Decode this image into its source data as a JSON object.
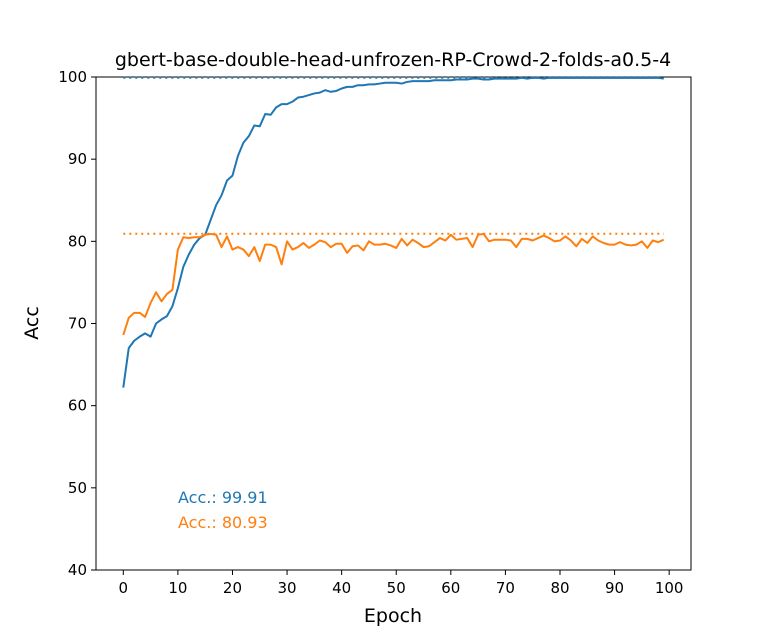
{
  "chart_data": {
    "type": "line",
    "title": "gbert-base-double-head-unfrozen-RP-Crowd-2-folds-a0.5-4",
    "xlabel": "Epoch",
    "ylabel": "Acc",
    "xlim": [
      -5,
      104
    ],
    "ylim": [
      40,
      100
    ],
    "xticks": [
      "0",
      "10",
      "20",
      "30",
      "40",
      "50",
      "60",
      "70",
      "80",
      "90",
      "100"
    ],
    "yticks": [
      "40",
      "50",
      "60",
      "70",
      "80",
      "90",
      "100"
    ],
    "grid": false,
    "series": [
      {
        "color": "#1f77b4",
        "x": [
          0,
          1,
          2,
          3,
          4,
          5,
          6,
          7,
          8,
          9,
          10,
          11,
          12,
          13,
          14,
          15,
          16,
          17,
          18,
          19,
          20,
          21,
          22,
          23,
          24,
          25,
          26,
          27,
          28,
          29,
          30,
          31,
          32,
          33,
          34,
          35,
          36,
          37,
          38,
          39,
          40,
          41,
          42,
          43,
          44,
          45,
          46,
          47,
          48,
          49,
          50,
          51,
          52,
          53,
          54,
          55,
          56,
          57,
          58,
          59,
          60,
          61,
          62,
          63,
          64,
          65,
          66,
          67,
          68,
          69,
          70,
          71,
          72,
          73,
          74,
          75,
          76,
          77,
          78,
          79,
          80,
          81,
          82,
          83,
          84,
          85,
          86,
          87,
          88,
          89,
          90,
          91,
          92,
          93,
          94,
          95,
          96,
          97,
          98,
          99
        ],
        "y": [
          62.2,
          67.0,
          67.9,
          68.4,
          68.8,
          68.4,
          70.0,
          70.5,
          70.9,
          72.1,
          74.3,
          76.9,
          78.4,
          79.6,
          80.4,
          80.8,
          82.6,
          84.4,
          85.6,
          87.4,
          88.0,
          90.4,
          92.0,
          92.8,
          94.1,
          94.0,
          95.5,
          95.4,
          96.3,
          96.7,
          96.7,
          97.0,
          97.5,
          97.6,
          97.8,
          98.0,
          98.1,
          98.4,
          98.2,
          98.3,
          98.6,
          98.8,
          98.8,
          99.0,
          99.0,
          99.1,
          99.1,
          99.2,
          99.3,
          99.3,
          99.3,
          99.2,
          99.4,
          99.5,
          99.5,
          99.5,
          99.5,
          99.6,
          99.6,
          99.6,
          99.6,
          99.7,
          99.7,
          99.7,
          99.8,
          99.8,
          99.7,
          99.7,
          99.8,
          99.8,
          99.8,
          99.8,
          99.8,
          99.9,
          99.8,
          99.9,
          99.9,
          99.8,
          99.9,
          99.9,
          99.9,
          99.9,
          99.9,
          99.9,
          99.9,
          99.9,
          99.9,
          99.9,
          99.9,
          99.9,
          99.9,
          99.9,
          99.9,
          99.9,
          99.9,
          99.9,
          99.9,
          99.9,
          99.9,
          99.8
        ],
        "best": 99.91
      },
      {
        "color": "#ff7f0e",
        "x": [
          0,
          1,
          2,
          3,
          4,
          5,
          6,
          7,
          8,
          9,
          10,
          11,
          12,
          13,
          14,
          15,
          16,
          17,
          18,
          19,
          20,
          21,
          22,
          23,
          24,
          25,
          26,
          27,
          28,
          29,
          30,
          31,
          32,
          33,
          34,
          35,
          36,
          37,
          38,
          39,
          40,
          41,
          42,
          43,
          44,
          45,
          46,
          47,
          48,
          49,
          50,
          51,
          52,
          53,
          54,
          55,
          56,
          57,
          58,
          59,
          60,
          61,
          62,
          63,
          64,
          65,
          66,
          67,
          68,
          69,
          70,
          71,
          72,
          73,
          74,
          75,
          76,
          77,
          78,
          79,
          80,
          81,
          82,
          83,
          84,
          85,
          86,
          87,
          88,
          89,
          90,
          91,
          92,
          93,
          94,
          95,
          96,
          97,
          98,
          99
        ],
        "y": [
          68.6,
          70.7,
          71.3,
          71.3,
          70.8,
          72.5,
          73.8,
          72.7,
          73.6,
          74.1,
          79.0,
          80.5,
          80.4,
          80.5,
          80.5,
          80.8,
          80.9,
          80.8,
          79.3,
          80.6,
          79.0,
          79.3,
          79.0,
          78.2,
          79.3,
          77.6,
          79.6,
          79.6,
          79.3,
          77.2,
          80.0,
          79.0,
          79.3,
          79.8,
          79.2,
          79.6,
          80.1,
          79.9,
          79.3,
          79.7,
          79.7,
          78.6,
          79.4,
          79.5,
          78.9,
          80.0,
          79.6,
          79.6,
          79.7,
          79.5,
          79.2,
          80.3,
          79.5,
          80.2,
          79.8,
          79.3,
          79.4,
          79.9,
          80.4,
          80.1,
          80.8,
          80.2,
          80.3,
          80.4,
          79.3,
          80.8,
          80.9,
          80.0,
          80.2,
          80.2,
          80.2,
          80.1,
          79.3,
          80.3,
          80.3,
          80.1,
          80.4,
          80.7,
          80.4,
          80.0,
          80.1,
          80.6,
          80.1,
          79.4,
          80.3,
          79.8,
          80.6,
          80.1,
          79.8,
          79.6,
          79.6,
          79.9,
          79.6,
          79.5,
          79.6,
          80.0,
          79.2,
          80.1,
          79.9,
          80.2
        ],
        "best": 80.93
      }
    ],
    "annotations": [
      {
        "text": "Acc.: 99.91",
        "color": "#1f77b4"
      },
      {
        "text": "Acc.: 80.93",
        "color": "#ff7f0e"
      }
    ]
  }
}
